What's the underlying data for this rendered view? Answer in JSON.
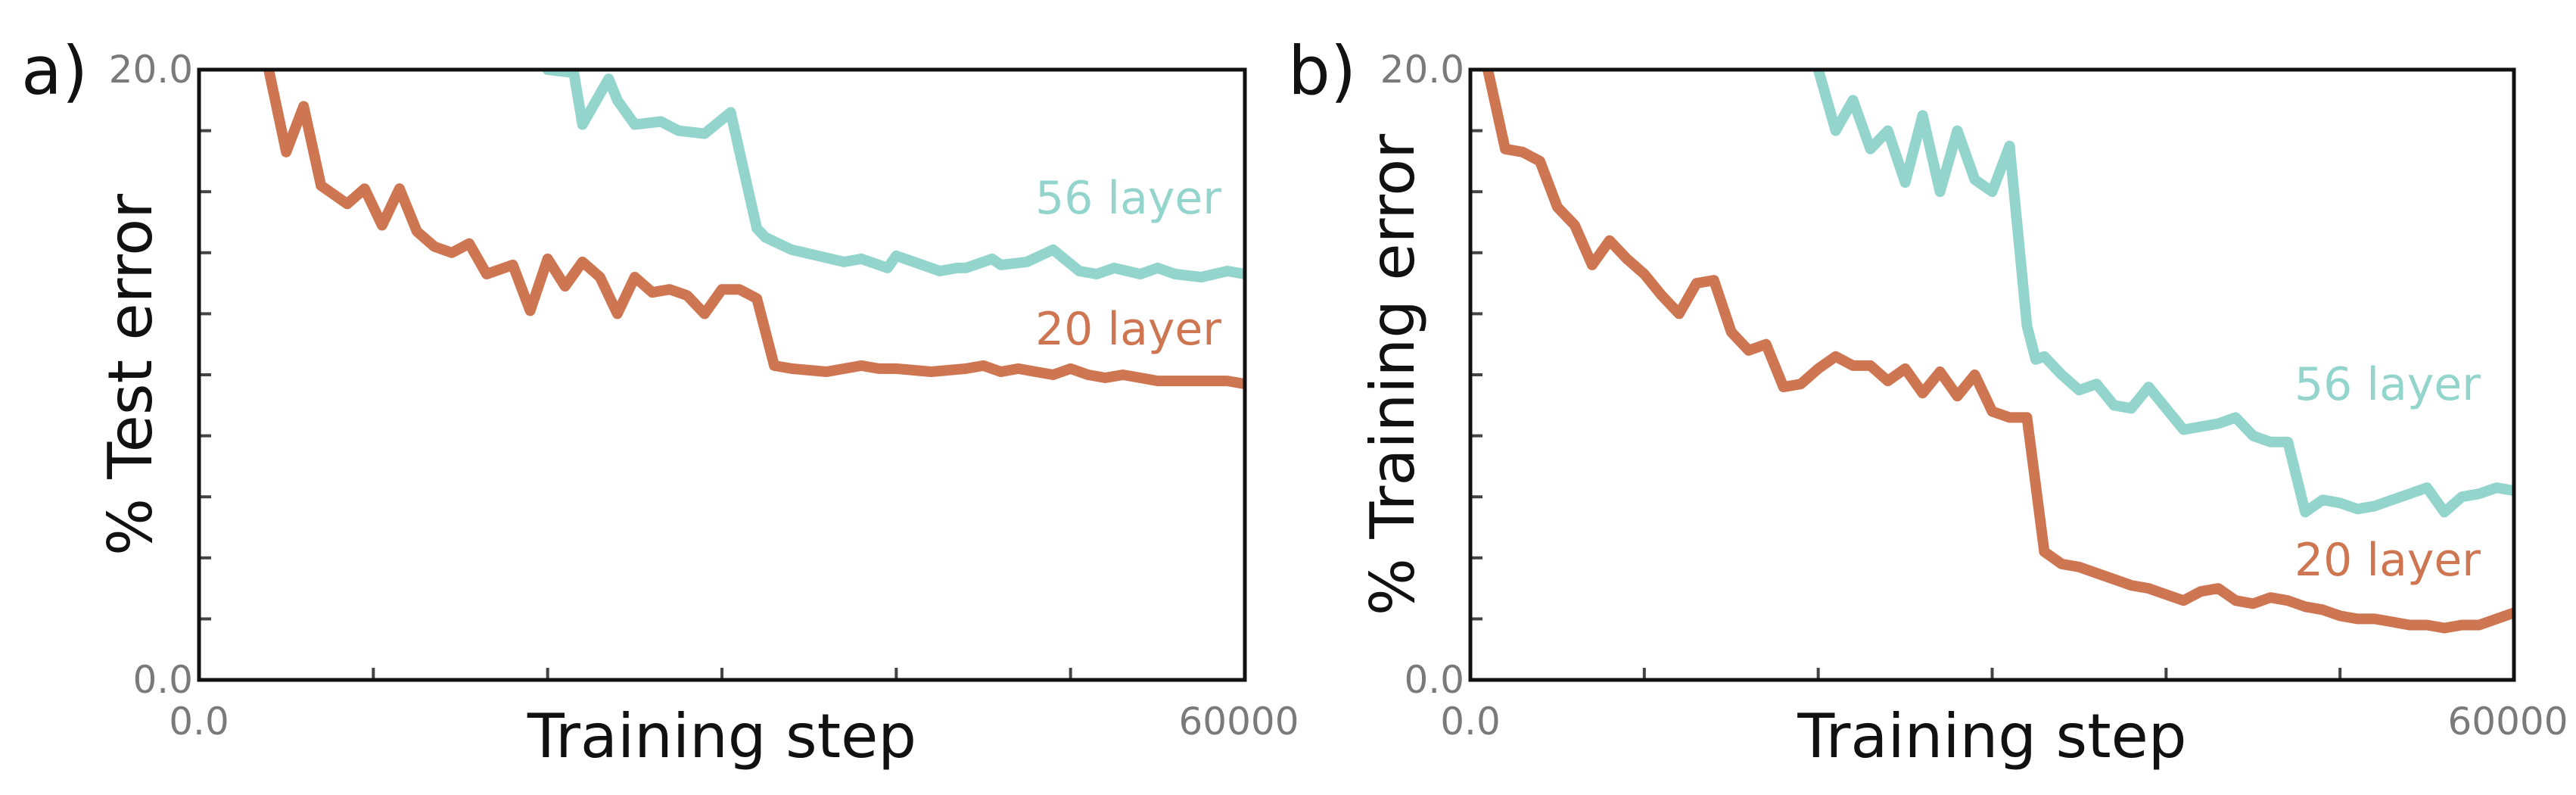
{
  "colors": {
    "series_56": "#93d5cd",
    "series_20": "#cd7651",
    "frame": "#111111"
  },
  "chart_data": [
    {
      "type": "line",
      "panel": "a)",
      "xlabel": "Training step",
      "ylabel": "% Test error",
      "xlim": [
        0,
        60000
      ],
      "ylim": [
        0,
        20
      ],
      "x_tick_labels": [
        "0.0",
        "60000"
      ],
      "y_tick_labels": [
        "0.0",
        "20.0"
      ],
      "series": [
        {
          "name": "56 layer",
          "color": "#93d5cd",
          "x": [
            20000,
            21500,
            22000,
            23500,
            24000,
            25000,
            26500,
            27500,
            29000,
            30500,
            32000,
            32500,
            34000,
            35500,
            37000,
            38000,
            39500,
            40000,
            41000,
            42500,
            43500,
            44000,
            45500,
            46000,
            47500,
            49000,
            50500,
            51500,
            52500,
            54000,
            55000,
            56000,
            57500,
            59000,
            60000
          ],
          "values": [
            20.0,
            19.9,
            18.2,
            19.7,
            19.0,
            18.2,
            18.3,
            18.0,
            17.9,
            18.6,
            14.8,
            14.5,
            14.1,
            13.9,
            13.7,
            13.8,
            13.5,
            13.9,
            13.7,
            13.4,
            13.5,
            13.5,
            13.8,
            13.6,
            13.7,
            14.1,
            13.4,
            13.3,
            13.5,
            13.3,
            13.5,
            13.3,
            13.2,
            13.4,
            13.3
          ]
        },
        {
          "name": "20 layer",
          "color": "#cd7651",
          "x": [
            4000,
            5000,
            6000,
            7000,
            8500,
            9500,
            10500,
            11500,
            12500,
            13500,
            14500,
            15500,
            16500,
            18000,
            19000,
            20000,
            21000,
            22000,
            23000,
            24000,
            25000,
            26000,
            27000,
            28000,
            29000,
            30000,
            31000,
            32000,
            33000,
            34000,
            36000,
            38000,
            39000,
            40000,
            42000,
            44000,
            45000,
            46000,
            47000,
            48000,
            49000,
            50000,
            51000,
            52000,
            53000,
            54000,
            55000,
            57000,
            59000,
            60000
          ],
          "values": [
            20.0,
            17.3,
            18.8,
            16.2,
            15.6,
            16.1,
            14.9,
            16.1,
            14.7,
            14.2,
            14.0,
            14.3,
            13.3,
            13.6,
            12.1,
            13.8,
            12.9,
            13.7,
            13.2,
            12.0,
            13.2,
            12.7,
            12.8,
            12.6,
            12.0,
            12.8,
            12.8,
            12.5,
            10.3,
            10.2,
            10.1,
            10.3,
            10.2,
            10.2,
            10.1,
            10.2,
            10.3,
            10.1,
            10.2,
            10.1,
            10.0,
            10.2,
            10.0,
            9.9,
            10.0,
            9.9,
            9.8,
            9.8,
            9.8,
            9.7
          ]
        }
      ]
    },
    {
      "type": "line",
      "panel": "b)",
      "xlabel": "Training step",
      "ylabel": "% Training error",
      "xlim": [
        0,
        60000
      ],
      "ylim": [
        0,
        20
      ],
      "x_tick_labels": [
        "0.0",
        "60000"
      ],
      "y_tick_labels": [
        "0.0",
        "20.0"
      ],
      "series": [
        {
          "name": "56 layer",
          "color": "#93d5cd",
          "x": [
            20000,
            21000,
            22000,
            23000,
            24000,
            25000,
            26000,
            27000,
            28000,
            29000,
            30000,
            31000,
            32000,
            32500,
            33000,
            34000,
            35000,
            36000,
            37000,
            38000,
            39000,
            40000,
            41000,
            42000,
            43000,
            44000,
            45000,
            46000,
            47000,
            48000,
            49000,
            50000,
            51000,
            52000,
            53000,
            54000,
            55000,
            56000,
            57000,
            58000,
            59000,
            60000
          ],
          "values": [
            20.0,
            18.0,
            19.0,
            17.4,
            18.0,
            16.3,
            18.5,
            16.0,
            18.0,
            16.4,
            16.0,
            17.5,
            11.6,
            10.5,
            10.6,
            10.0,
            9.5,
            9.7,
            9.0,
            8.9,
            9.6,
            8.9,
            8.2,
            8.3,
            8.4,
            8.6,
            8.0,
            7.8,
            7.8,
            5.5,
            5.9,
            5.8,
            5.6,
            5.7,
            5.9,
            6.1,
            6.3,
            5.5,
            6.0,
            6.1,
            6.3,
            6.2
          ]
        },
        {
          "name": "20 layer",
          "color": "#cd7651",
          "x": [
            1000,
            2000,
            3000,
            4000,
            5000,
            6000,
            7000,
            8000,
            9000,
            10000,
            11000,
            12000,
            13000,
            14000,
            15000,
            16000,
            17000,
            18000,
            19000,
            20000,
            21000,
            22000,
            23000,
            24000,
            25000,
            26000,
            27000,
            28000,
            29000,
            30000,
            31000,
            32000,
            33000,
            34000,
            35000,
            36000,
            37000,
            38000,
            39000,
            40000,
            41000,
            42000,
            43000,
            44000,
            45000,
            46000,
            47000,
            48000,
            49000,
            50000,
            51000,
            52000,
            53000,
            54000,
            55000,
            56000,
            57000,
            58000,
            59000,
            60000
          ],
          "values": [
            20.0,
            17.4,
            17.3,
            17.0,
            15.5,
            14.9,
            13.6,
            14.4,
            13.8,
            13.3,
            12.6,
            12.0,
            13.0,
            13.1,
            11.4,
            10.8,
            11.0,
            9.6,
            9.7,
            10.2,
            10.6,
            10.3,
            10.3,
            9.8,
            10.2,
            9.4,
            10.1,
            9.3,
            10.0,
            8.8,
            8.6,
            8.6,
            4.2,
            3.8,
            3.7,
            3.5,
            3.3,
            3.1,
            3.0,
            2.8,
            2.6,
            2.9,
            3.0,
            2.6,
            2.5,
            2.7,
            2.6,
            2.4,
            2.3,
            2.1,
            2.0,
            2.0,
            1.9,
            1.8,
            1.8,
            1.7,
            1.8,
            1.8,
            2.0,
            2.2
          ]
        }
      ]
    }
  ]
}
